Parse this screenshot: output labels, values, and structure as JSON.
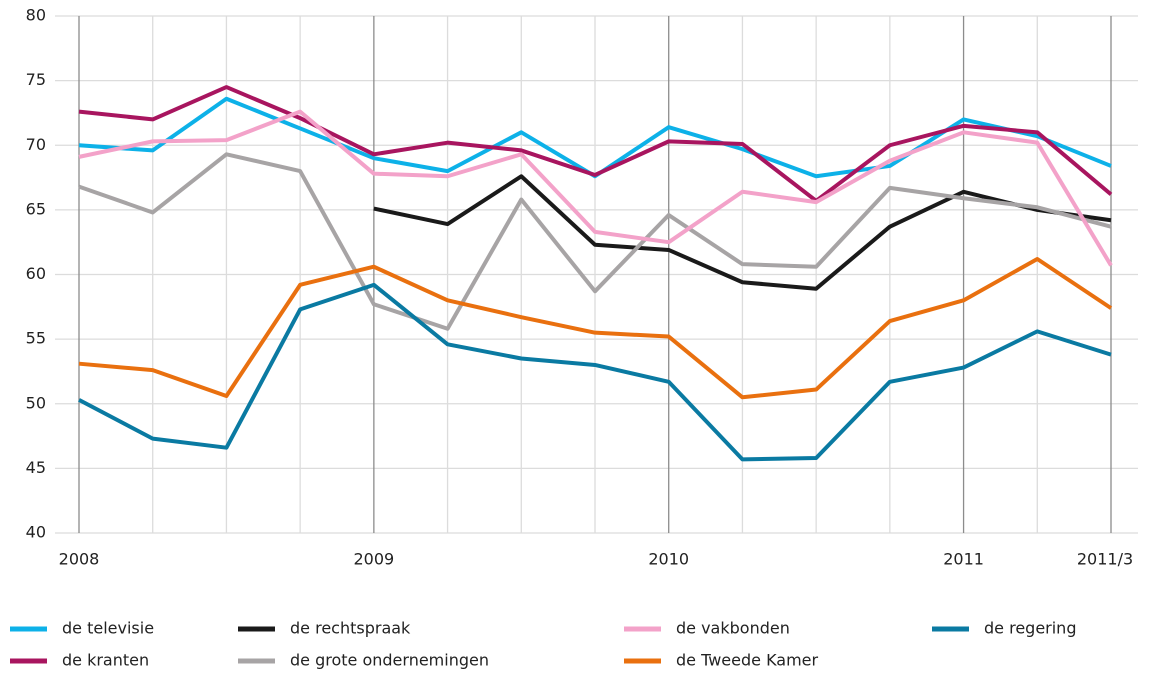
{
  "chart_data": {
    "type": "line",
    "categories": [
      "2008",
      null,
      null,
      null,
      "2009",
      null,
      null,
      null,
      "2010",
      null,
      null,
      null,
      "2011",
      null,
      "2011/3"
    ],
    "ylim": [
      40,
      80
    ],
    "yticks": [
      40,
      45,
      50,
      55,
      60,
      65,
      70,
      75,
      80
    ],
    "grid": true,
    "legend": "bottom",
    "series": [
      {
        "name": "de televisie",
        "color": "#0db1e8",
        "values": [
          70.0,
          69.6,
          73.6,
          71.3,
          69.0,
          68.0,
          71.0,
          67.6,
          71.4,
          69.7,
          67.6,
          68.4,
          72.0,
          70.7,
          68.4
        ]
      },
      {
        "name": "de kranten",
        "color": "#a8155f",
        "values": [
          72.6,
          72.0,
          74.5,
          72.1,
          69.3,
          70.2,
          69.6,
          67.7,
          70.3,
          70.1,
          65.7,
          70.0,
          71.5,
          71.0,
          66.2
        ]
      },
      {
        "name": "de rechtspraak",
        "color": "#1a1a1a",
        "values": [
          null,
          null,
          null,
          null,
          65.1,
          63.9,
          67.6,
          62.3,
          61.9,
          59.4,
          58.9,
          63.7,
          66.4,
          65.0,
          64.2
        ]
      },
      {
        "name": "de grote ondernemingen",
        "color": "#a7a4a5",
        "values": [
          66.8,
          64.8,
          69.3,
          68.0,
          57.7,
          55.8,
          65.8,
          58.7,
          64.6,
          60.8,
          60.6,
          66.7,
          65.9,
          65.2,
          63.7
        ]
      },
      {
        "name": "de vakbonden",
        "color": "#f3a2c9",
        "values": [
          69.1,
          70.3,
          70.4,
          72.6,
          67.8,
          67.6,
          69.3,
          63.3,
          62.5,
          66.4,
          65.6,
          68.8,
          71.0,
          70.2,
          60.7
        ]
      },
      {
        "name": "de Tweede Kamer",
        "color": "#e9700f",
        "values": [
          53.1,
          52.6,
          50.6,
          59.2,
          60.6,
          58.0,
          56.7,
          55.5,
          55.2,
          50.5,
          51.1,
          56.4,
          58.0,
          61.2,
          57.4
        ]
      },
      {
        "name": "de regering",
        "color": "#0a7aa2",
        "values": [
          50.3,
          47.3,
          46.6,
          57.3,
          59.2,
          54.6,
          53.5,
          53.0,
          51.7,
          45.7,
          45.8,
          51.7,
          52.8,
          55.6,
          53.8
        ]
      }
    ]
  }
}
